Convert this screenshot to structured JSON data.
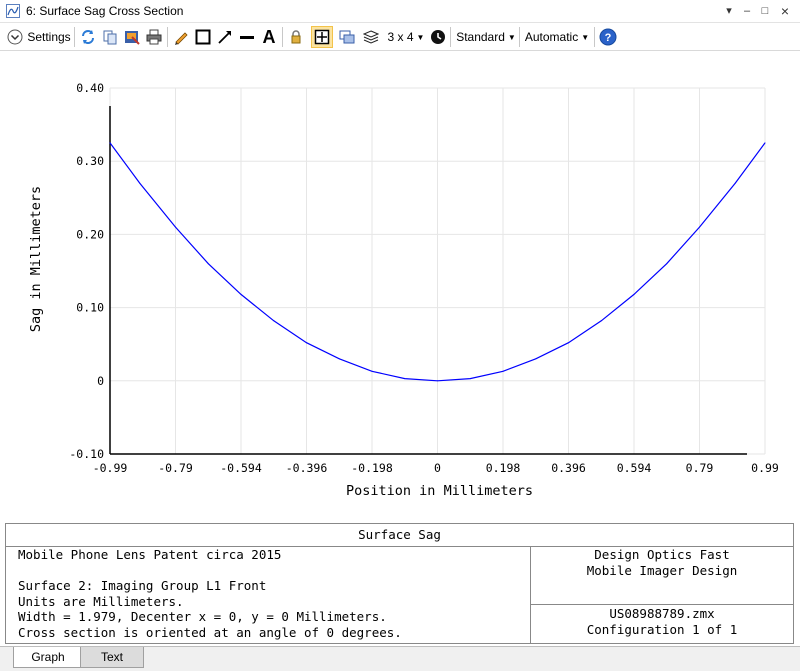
{
  "window": {
    "title": "6: Surface Sag Cross Section"
  },
  "toolbar": {
    "settings_label": "Settings",
    "layout_label": "3 x 4",
    "standard_label": "Standard",
    "automatic_label": "Automatic"
  },
  "chart_data": {
    "type": "line",
    "xlabel": "Position in Millimeters",
    "ylabel": "Sag in Millimeters",
    "xlim": [
      -0.99,
      0.99
    ],
    "ylim": [
      -0.1,
      0.4
    ],
    "x_ticks": [
      "-0.99",
      "-0.79",
      "-0.594",
      "-0.396",
      "-0.198",
      "0",
      "0.198",
      "0.396",
      "0.594",
      "0.79",
      "0.99"
    ],
    "y_ticks": [
      "0.40",
      "0.30",
      "0.20",
      "0.10",
      "0",
      "-0.10"
    ],
    "grid": true,
    "series": [
      {
        "color": "#0000ff",
        "x": [
          -0.99,
          -0.9,
          -0.792,
          -0.693,
          -0.594,
          -0.495,
          -0.396,
          -0.297,
          -0.198,
          -0.099,
          0,
          0.099,
          0.198,
          0.297,
          0.396,
          0.495,
          0.594,
          0.693,
          0.792,
          0.9,
          0.99
        ],
        "y": [
          0.325,
          0.27,
          0.21,
          0.16,
          0.118,
          0.082,
          0.052,
          0.03,
          0.013,
          0.003,
          0,
          0.003,
          0.013,
          0.03,
          0.052,
          0.082,
          0.118,
          0.16,
          0.21,
          0.27,
          0.325
        ]
      }
    ]
  },
  "panel": {
    "title": "Surface Sag",
    "lines": [
      "Mobile Phone Lens Patent circa 2015",
      "",
      "Surface 2: Imaging Group L1 Front",
      "Units are Millimeters.",
      "Width = 1.979, Decenter x = 0, y = 0 Millimeters.",
      "Cross section is oriented at an angle of 0 degrees."
    ],
    "company_line1": "Design Optics Fast",
    "company_line2": "Mobile Imager Design",
    "file": "US08988789.zmx",
    "config": "Configuration 1 of 1"
  },
  "tabs": [
    {
      "label": "Graph"
    },
    {
      "label": "Text"
    }
  ],
  "colors": {
    "accent": "#0000ff",
    "highlight": "#f3c34a"
  }
}
